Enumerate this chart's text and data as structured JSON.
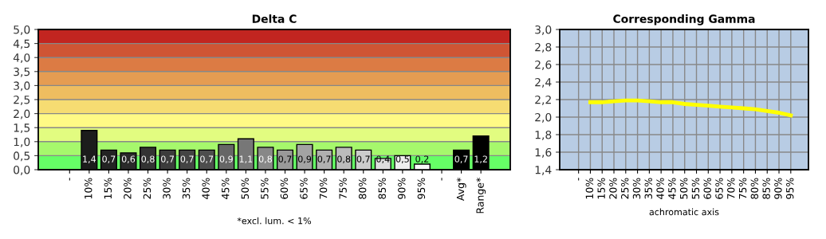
{
  "chart_data": [
    {
      "type": "bar",
      "title": "Delta C",
      "annotations": [
        "*excl. lum. < 1%"
      ],
      "categories": [
        "-",
        "10%",
        "15%",
        "20%",
        "25%",
        "30%",
        "35%",
        "40%",
        "45%",
        "50%",
        "55%",
        "60%",
        "65%",
        "70%",
        "75%",
        "80%",
        "85%",
        "90%",
        "95%",
        "-",
        "Avg*",
        "Range*"
      ],
      "values": [
        null,
        1.4,
        0.7,
        0.6,
        0.8,
        0.7,
        0.7,
        0.7,
        0.9,
        1.1,
        0.8,
        0.7,
        0.9,
        0.7,
        0.8,
        0.7,
        0.4,
        0.5,
        0.2,
        null,
        0.7,
        1.2
      ],
      "colors": [
        "#000000",
        "#1c1c1c",
        "#232323",
        "#2a2a2a",
        "#333333",
        "#3c3c3c",
        "#444444",
        "#4d4d4d",
        "#666666",
        "#777777",
        "#888888",
        "#999999",
        "#a3a3a3",
        "#b0b0b0",
        "#bbbbbb",
        "#cccccc",
        "#dddddd",
        "#eeeeee",
        "#fafafa",
        "#000000",
        "#000000",
        "#000000"
      ],
      "value_labels": [
        null,
        "1,4",
        "0,7",
        "0,6",
        "0,8",
        "0,7",
        "0,7",
        "0,7",
        "0,9",
        "1,1",
        "0,8",
        "0,7",
        "0,9",
        "0,7",
        "0,8",
        "0,7",
        "0,4",
        "0,5",
        "0,2",
        null,
        "0,7",
        "1,2"
      ],
      "ylim": [
        0,
        5
      ],
      "yticks": [
        {
          "value": 0,
          "label": "0,0"
        },
        {
          "value": 0.5,
          "label": "0,5"
        },
        {
          "value": 1,
          "label": "1,0"
        },
        {
          "value": 1.5,
          "label": "1,5"
        },
        {
          "value": 2,
          "label": "2,0"
        },
        {
          "value": 2.5,
          "label": "2,5"
        },
        {
          "value": 3,
          "label": "3,0"
        },
        {
          "value": 3.5,
          "label": "3,5"
        },
        {
          "value": 4,
          "label": "4,0"
        },
        {
          "value": 4.5,
          "label": "4,5"
        },
        {
          "value": 5,
          "label": "5,0"
        }
      ],
      "bands": [
        {
          "axis": "y",
          "from": 0,
          "to": 0.5,
          "color": "#66ff66"
        },
        {
          "axis": "y",
          "from": 0.5,
          "to": 1,
          "color": "#a6f86c"
        },
        {
          "axis": "y",
          "from": 1,
          "to": 1.5,
          "color": "#e2fc80"
        },
        {
          "axis": "y",
          "from": 1.5,
          "to": 2,
          "color": "#fffa85"
        },
        {
          "axis": "y",
          "from": 2,
          "to": 2.5,
          "color": "#f6dc72"
        },
        {
          "axis": "y",
          "from": 2.5,
          "to": 3,
          "color": "#eebd60"
        },
        {
          "axis": "y",
          "from": 3,
          "to": 3.5,
          "color": "#e59c52"
        },
        {
          "axis": "y",
          "from": 3.5,
          "to": 4,
          "color": "#dc7b44"
        },
        {
          "axis": "y",
          "from": 4,
          "to": 4.5,
          "color": "#cf5534"
        },
        {
          "axis": "y",
          "from": 4.5,
          "to": 5,
          "color": "#c22520"
        }
      ],
      "grid": "y"
    },
    {
      "type": "line",
      "title": "Corresponding Gamma",
      "xlabel": "achromatic axis",
      "categories": [
        "-",
        "10%",
        "15%",
        "20%",
        "25%",
        "30%",
        "35%",
        "40%",
        "45%",
        "50%",
        "55%",
        "60%",
        "65%",
        "70%",
        "75%",
        "80%",
        "85%",
        "90%",
        "95%"
      ],
      "series": [
        {
          "color": "#ffff00",
          "values": [
            null,
            2.17,
            2.17,
            2.18,
            2.19,
            2.19,
            2.18,
            2.17,
            2.17,
            2.15,
            2.14,
            2.13,
            2.12,
            2.11,
            2.1,
            2.09,
            2.07,
            2.05,
            2.02
          ]
        }
      ],
      "ylim": [
        1.4,
        3.0
      ],
      "yticks": [
        {
          "value": 1.4,
          "label": "1,4"
        },
        {
          "value": 1.6,
          "label": "1,6"
        },
        {
          "value": 1.8,
          "label": "1,8"
        },
        {
          "value": 2.0,
          "label": "2,0"
        },
        {
          "value": 2.2,
          "label": "2,2"
        },
        {
          "value": 2.4,
          "label": "2,4"
        },
        {
          "value": 2.6,
          "label": "2,6"
        },
        {
          "value": 2.8,
          "label": "2,8"
        },
        {
          "value": 3.0,
          "label": "3,0"
        }
      ],
      "marker": "none",
      "grid": true
    }
  ]
}
